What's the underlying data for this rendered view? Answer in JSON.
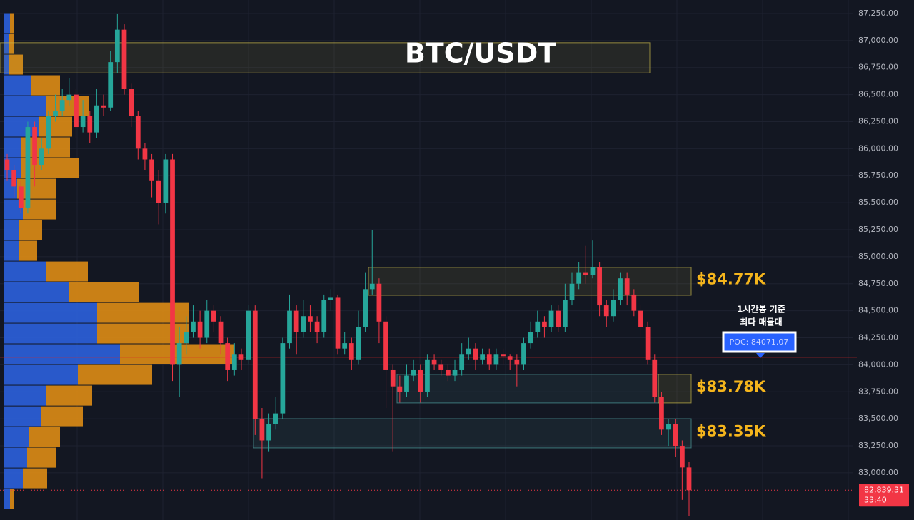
{
  "chart_data": {
    "type": "candlestick",
    "title": "BTC/USDT",
    "up_color": "#26a69a",
    "down_color": "#f23645",
    "open": [
      85900,
      85800,
      85650,
      85450,
      86200,
      85850,
      86000,
      86300,
      86350,
      86450,
      86500,
      86200,
      86300,
      86150,
      86400,
      86380,
      86800,
      87100,
      86550,
      86300,
      86000,
      85900,
      85700,
      85500,
      85900,
      84000,
      84200,
      84300,
      84400,
      84250,
      84500,
      84400,
      84200,
      83950,
      84100,
      84050,
      84500,
      83500,
      83300,
      83450,
      83550,
      84200,
      84500,
      84300,
      84450,
      84400,
      84300,
      84600,
      84620,
      84150,
      84200,
      84050,
      84350,
      84700,
      84750,
      84400,
      83950,
      83800,
      83750,
      83900,
      83950,
      83750,
      84050,
      84000,
      83950,
      83900,
      83950,
      84100,
      84150,
      84050,
      84100,
      84000,
      84100,
      84080,
      84050,
      84000,
      84200,
      84300,
      84400,
      84350,
      84500,
      84350,
      84600,
      84750,
      84850,
      84830,
      84900,
      84550,
      84450,
      84600,
      84800,
      84650,
      84500,
      84350,
      84050,
      83700,
      83400,
      83450,
      83250,
      83050
    ],
    "high": [
      85950,
      85850,
      85700,
      86250,
      86250,
      86100,
      86350,
      86500,
      86550,
      86650,
      86550,
      86450,
      86350,
      86550,
      86500,
      86900,
      87250,
      87150,
      86600,
      86350,
      86050,
      85950,
      85800,
      85950,
      85950,
      84350,
      84450,
      84550,
      84500,
      84600,
      84550,
      84450,
      84250,
      84200,
      84150,
      84550,
      84550,
      83600,
      83550,
      83700,
      84250,
      84650,
      84550,
      84600,
      84550,
      84450,
      84650,
      84700,
      84650,
      84300,
      84250,
      84500,
      84850,
      85250,
      84800,
      84450,
      84000,
      83900,
      84000,
      84050,
      84000,
      84100,
      84100,
      84050,
      84000,
      84050,
      84200,
      84250,
      84200,
      84150,
      84150,
      84150,
      84150,
      84100,
      84100,
      84250,
      84400,
      84500,
      84450,
      84550,
      84550,
      84750,
      84850,
      84950,
      85100,
      85150,
      84950,
      84600,
      84700,
      84850,
      84850,
      84700,
      84550,
      84400,
      84100,
      83750,
      83500,
      83500,
      83300,
      83100
    ],
    "low": [
      85700,
      85550,
      85400,
      85400,
      85650,
      85800,
      85950,
      86250,
      86300,
      86400,
      86100,
      86150,
      86050,
      86100,
      86300,
      86350,
      86700,
      86500,
      86200,
      85900,
      85800,
      85550,
      85300,
      85400,
      83850,
      83700,
      84100,
      84250,
      84150,
      84200,
      84300,
      84100,
      83850,
      83900,
      83950,
      84000,
      83350,
      82950,
      83200,
      83400,
      83500,
      84150,
      84100,
      84250,
      84300,
      84200,
      84250,
      84500,
      84100,
      84100,
      83950,
      84000,
      84300,
      84650,
      84200,
      83600,
      83200,
      83650,
      83700,
      83850,
      83650,
      83700,
      83950,
      83900,
      83850,
      83850,
      83900,
      84050,
      83950,
      84000,
      83950,
      83950,
      84000,
      83950,
      83800,
      83950,
      84150,
      84250,
      84250,
      84300,
      84300,
      84300,
      84550,
      84700,
      84750,
      84800,
      84450,
      84350,
      84400,
      84550,
      84550,
      84450,
      84250,
      84000,
      83650,
      83350,
      83250,
      83150,
      82750,
      82600
    ],
    "close": [
      85800,
      85650,
      85450,
      86200,
      85850,
      86000,
      86300,
      86350,
      86450,
      86500,
      86200,
      86300,
      86150,
      86400,
      86380,
      86800,
      87100,
      86550,
      86300,
      86000,
      85900,
      85700,
      85500,
      85900,
      84000,
      84200,
      84300,
      84400,
      84250,
      84500,
      84400,
      84200,
      83950,
      84100,
      84050,
      84500,
      83500,
      83300,
      83450,
      83550,
      84200,
      84500,
      84300,
      84450,
      84400,
      84300,
      84600,
      84620,
      84150,
      84200,
      84050,
      84350,
      84700,
      84750,
      84400,
      83950,
      83800,
      83750,
      83900,
      83950,
      83750,
      84050,
      84000,
      83950,
      83900,
      83950,
      84100,
      84150,
      84050,
      84100,
      84000,
      84100,
      84080,
      84050,
      84000,
      84200,
      84300,
      84400,
      84350,
      84500,
      84350,
      84600,
      84750,
      84850,
      84830,
      84900,
      84550,
      84450,
      84600,
      84800,
      84650,
      84500,
      84350,
      84050,
      83700,
      83400,
      83450,
      83250,
      83050,
      82839.31
    ],
    "ylim": [
      82564,
      87375
    ],
    "yticks": [
      {
        "value": 83000,
        "label": "83,000.00"
      },
      {
        "value": 83250,
        "label": "83,250.00"
      },
      {
        "value": 83500,
        "label": "83,500.00"
      },
      {
        "value": 83750,
        "label": "83,750.00"
      },
      {
        "value": 84000,
        "label": "84,000.00"
      },
      {
        "value": 84250,
        "label": "84,250.00"
      },
      {
        "value": 84500,
        "label": "84,500.00"
      },
      {
        "value": 84750,
        "label": "84,750.00"
      },
      {
        "value": 85000,
        "label": "85,000.00"
      },
      {
        "value": 85250,
        "label": "85,250.00"
      },
      {
        "value": 85500,
        "label": "85,500.00"
      },
      {
        "value": 85750,
        "label": "85,750.00"
      },
      {
        "value": 86000,
        "label": "86,000.00"
      },
      {
        "value": 86250,
        "label": "86,250.00"
      },
      {
        "value": 86500,
        "label": "86,500.00"
      },
      {
        "value": 86750,
        "label": "86,750.00"
      },
      {
        "value": 87000,
        "label": "87,000.00"
      },
      {
        "value": 87250,
        "label": "87,250.00"
      }
    ],
    "grid": true,
    "volume_profile": {
      "bins": [
        87256,
        87065,
        86873,
        86682,
        86490,
        86299,
        86108,
        85916,
        85725,
        85533,
        85342,
        85151,
        84959,
        84768,
        84576,
        84385,
        84194,
        84002,
        83811,
        83619,
        83428,
        83237,
        83045,
        82854,
        82662
      ],
      "buy": {
        "color": "#2b5fd9",
        "values": [
          8,
          6,
          6,
          38,
          58,
          48,
          24,
          24,
          18,
          26,
          20,
          20,
          58,
          90,
          130,
          130,
          162,
          103,
          58,
          52,
          34,
          32,
          26,
          8
        ]
      },
      "sell": {
        "color": "#d98a16",
        "values": [
          6,
          8,
          20,
          40,
          60,
          47,
          68,
          80,
          54,
          46,
          33,
          26,
          59,
          98,
          128,
          128,
          160,
          104,
          65,
          58,
          44,
          40,
          34,
          6
        ]
      }
    },
    "poc": {
      "value": 84071.07,
      "label": "POC: 84071.07",
      "color": "#e02424"
    },
    "poc_note": [
      "1시간봉 기준",
      "최다 매물대"
    ],
    "zones": [
      {
        "top": 86980,
        "bottom": 86700,
        "color": "#c9b84a"
      },
      {
        "top": 84901,
        "bottom": 84643,
        "label": "$84.77K",
        "color": "#c9b84a"
      },
      {
        "top": 83911,
        "bottom": 83647,
        "label": "$83.78K",
        "color": "#4f9c9c",
        "tail_color": "#c9b84a"
      },
      {
        "top": 83501,
        "bottom": 83231,
        "label": "$83.35K",
        "color": "#4f9c9c"
      }
    ],
    "last_price": {
      "value": 82839.31,
      "label": "82,839.31",
      "countdown": "33:40",
      "color": "#f23645"
    }
  }
}
